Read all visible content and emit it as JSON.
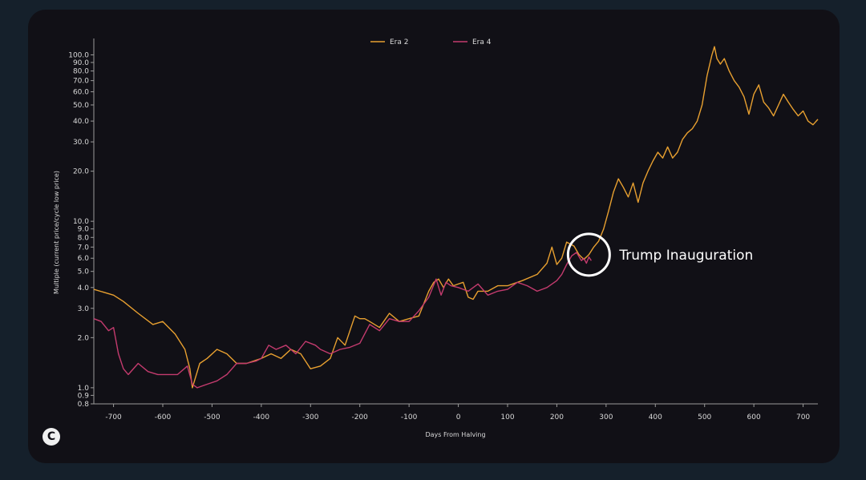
{
  "logo_letter": "C",
  "chart_data": {
    "type": "line",
    "title": "",
    "xlabel": "Days From Halving",
    "ylabel": "Multiple (current price/cycle low price)",
    "yscale": "log",
    "xlim": [
      -740,
      730
    ],
    "ylim": [
      0.8,
      120
    ],
    "x_ticks": [
      -700,
      -600,
      -500,
      -400,
      -300,
      -200,
      -100,
      0,
      100,
      200,
      300,
      400,
      500,
      600,
      700
    ],
    "y_ticks": [
      0.8,
      0.9,
      1.0,
      2.0,
      3.0,
      4.0,
      5.0,
      6.0,
      7.0,
      8.0,
      9.0,
      10.0,
      20.0,
      30.0,
      40.0,
      50.0,
      60.0,
      70.0,
      80.0,
      90.0,
      100.0
    ],
    "y_tick_labels": [
      "0.8",
      "0.9",
      "1.0",
      "2.0",
      "3.0",
      "4.0",
      "5.0",
      "6.0",
      "7.0",
      "8.0",
      "9.0",
      "10.0",
      "20.0",
      "30.0",
      "40.0",
      "50.0",
      "60.0",
      "70.0",
      "80.0",
      "90.0",
      "100.0"
    ],
    "grid": false,
    "legend_position": "top-center",
    "series": [
      {
        "name": "Era 2",
        "color": "#e8a030",
        "x": [
          -740,
          -700,
          -680,
          -650,
          -620,
          -600,
          -575,
          -555,
          -545,
          -540,
          -525,
          -510,
          -490,
          -470,
          -450,
          -430,
          -400,
          -380,
          -360,
          -340,
          -320,
          -300,
          -280,
          -260,
          -245,
          -230,
          -210,
          -200,
          -190,
          -180,
          -160,
          -140,
          -120,
          -100,
          -80,
          -60,
          -50,
          -40,
          -30,
          -20,
          -10,
          0,
          10,
          20,
          30,
          40,
          60,
          80,
          100,
          130,
          160,
          180,
          190,
          200,
          210,
          220,
          235,
          245,
          255,
          265,
          275,
          285,
          295,
          305,
          315,
          325,
          335,
          345,
          355,
          365,
          375,
          385,
          395,
          405,
          415,
          425,
          435,
          445,
          455,
          465,
          475,
          485,
          495,
          505,
          515,
          520,
          525,
          532,
          540,
          550,
          560,
          570,
          580,
          590,
          600,
          610,
          620,
          630,
          640,
          650,
          660,
          670,
          680,
          690,
          700,
          710,
          720,
          730
        ],
        "y": [
          3.9,
          3.6,
          3.3,
          2.8,
          2.4,
          2.5,
          2.1,
          1.7,
          1.3,
          1.0,
          1.4,
          1.5,
          1.7,
          1.6,
          1.4,
          1.4,
          1.5,
          1.6,
          1.5,
          1.7,
          1.6,
          1.3,
          1.35,
          1.5,
          2.0,
          1.8,
          2.7,
          2.6,
          2.6,
          2.5,
          2.3,
          2.8,
          2.5,
          2.6,
          2.7,
          3.8,
          4.3,
          4.5,
          4.0,
          4.5,
          4.1,
          4.2,
          4.3,
          3.5,
          3.4,
          3.8,
          3.8,
          4.1,
          4.1,
          4.4,
          4.8,
          5.6,
          7.0,
          5.5,
          6.0,
          7.5,
          7.1,
          6.3,
          5.9,
          6.3,
          7.0,
          7.6,
          9.0,
          11.5,
          15.0,
          18.0,
          16.0,
          14.0,
          17.0,
          13.0,
          17.0,
          20.0,
          23.0,
          26.0,
          24.0,
          28.0,
          24.0,
          26.0,
          31.0,
          34.0,
          36.0,
          40.0,
          50.0,
          75.0,
          100.0,
          112.0,
          95.0,
          88.0,
          95.0,
          80.0,
          70.0,
          64.0,
          56.0,
          44.0,
          58.0,
          66.0,
          52.0,
          48.0,
          43.0,
          50.0,
          58.0,
          52.0,
          47.0,
          43.0,
          46.0,
          40.0,
          38.0,
          41.0
        ]
      },
      {
        "name": "Era 4",
        "color": "#c43b6e",
        "x": [
          -740,
          -725,
          -710,
          -700,
          -690,
          -680,
          -670,
          -650,
          -630,
          -610,
          -590,
          -570,
          -550,
          -540,
          -530,
          -510,
          -490,
          -470,
          -450,
          -430,
          -410,
          -400,
          -385,
          -370,
          -350,
          -330,
          -310,
          -290,
          -280,
          -260,
          -240,
          -220,
          -200,
          -180,
          -160,
          -140,
          -120,
          -100,
          -80,
          -60,
          -45,
          -35,
          -25,
          -15,
          0,
          20,
          40,
          60,
          80,
          100,
          120,
          140,
          160,
          180,
          200,
          210,
          220,
          230,
          240,
          250,
          255,
          260,
          265,
          270
        ],
        "y": [
          2.6,
          2.5,
          2.2,
          2.3,
          1.6,
          1.3,
          1.2,
          1.4,
          1.25,
          1.2,
          1.2,
          1.2,
          1.35,
          1.05,
          1.0,
          1.05,
          1.1,
          1.2,
          1.4,
          1.4,
          1.45,
          1.5,
          1.8,
          1.7,
          1.8,
          1.6,
          1.9,
          1.8,
          1.7,
          1.6,
          1.7,
          1.75,
          1.85,
          2.4,
          2.2,
          2.6,
          2.5,
          2.5,
          2.9,
          3.5,
          4.5,
          3.6,
          4.3,
          4.1,
          4.0,
          3.8,
          4.2,
          3.6,
          3.8,
          3.9,
          4.3,
          4.1,
          3.8,
          4.0,
          4.4,
          4.8,
          5.5,
          6.2,
          6.5,
          5.8,
          6.0,
          5.6,
          6.1,
          5.8
        ]
      }
    ],
    "annotations": [
      {
        "text": "Trump Inauguration",
        "x": 265,
        "y": 6.3
      }
    ]
  }
}
